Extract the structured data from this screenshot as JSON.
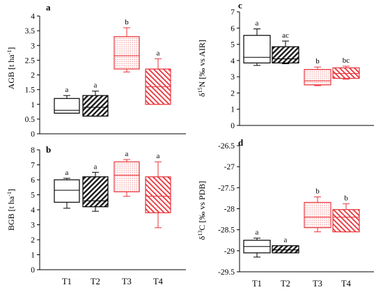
{
  "colors": {
    "axis": "#000000",
    "red": "#e8333a",
    "black": "#1a1a1a",
    "red_dots": "#f3a2a2"
  },
  "categories": [
    "T1",
    "T2",
    "T3",
    "T4"
  ],
  "chart_data": [
    {
      "type": "box",
      "panel_label": "a",
      "ylabel": "AGB [t ha-1]",
      "ylim": [
        0,
        4
      ],
      "yticks": [
        0,
        0.5,
        1,
        1.5,
        2,
        2.5,
        3,
        3.5,
        4
      ],
      "ytick_labels": [
        "0",
        "0.5",
        "1",
        "1.5",
        "2",
        "2.5",
        "3",
        "3.5",
        "4"
      ],
      "boxes": [
        {
          "category": "T1",
          "min": 0.7,
          "q1": 0.7,
          "median": 0.8,
          "q3": 1.2,
          "max": 1.3,
          "letter": "a",
          "fill": "white"
        },
        {
          "category": "T2",
          "min": 0.6,
          "q1": 0.6,
          "median": 0.9,
          "q3": 1.3,
          "max": 1.45,
          "letter": "a",
          "fill": "black-hatch"
        },
        {
          "category": "T3",
          "min": 2.1,
          "q1": 2.2,
          "median": 2.65,
          "q3": 3.3,
          "max": 3.6,
          "letter": "b",
          "fill": "red-dots"
        },
        {
          "category": "T4",
          "min": 1.0,
          "q1": 1.0,
          "median": 1.6,
          "q3": 2.2,
          "max": 2.55,
          "letter": "a",
          "fill": "red-hatch"
        }
      ]
    },
    {
      "type": "box",
      "panel_label": "b",
      "ylabel": "BGB [t ha-1]",
      "ylim": [
        0,
        8
      ],
      "yticks": [
        0,
        1,
        2,
        3,
        4,
        5,
        6,
        7,
        8
      ],
      "ytick_labels": [
        "0",
        "1",
        "2",
        "3",
        "4",
        "5",
        "6",
        "7",
        "8"
      ],
      "boxes": [
        {
          "category": "T1",
          "min": 4.1,
          "q1": 4.5,
          "median": 5.3,
          "q3": 6.0,
          "max": 6.1,
          "letter": "a",
          "fill": "white"
        },
        {
          "category": "T2",
          "min": 3.9,
          "q1": 4.2,
          "median": 4.6,
          "q3": 6.2,
          "max": 6.5,
          "letter": "a",
          "fill": "black-hatch"
        },
        {
          "category": "T3",
          "min": 4.9,
          "q1": 5.2,
          "median": 6.3,
          "q3": 7.2,
          "max": 7.35,
          "letter": "a",
          "fill": "red-dots"
        },
        {
          "category": "T4",
          "min": 2.8,
          "q1": 3.8,
          "median": 4.9,
          "q3": 6.2,
          "max": 7.2,
          "letter": "a",
          "fill": "red-hatch"
        }
      ]
    },
    {
      "type": "box",
      "panel_label": "c",
      "ylabel": "δ15N [‰ vs AIR]",
      "ylim": [
        0,
        7
      ],
      "yticks": [
        0,
        1,
        2,
        3,
        4,
        5,
        6,
        7
      ],
      "ytick_labels": [
        "0",
        "1",
        "2",
        "3",
        "4",
        "5",
        "6",
        "7"
      ],
      "boxes": [
        {
          "category": "T1",
          "min": 3.7,
          "q1": 3.85,
          "median": 4.2,
          "q3": 5.55,
          "max": 5.95,
          "letter": "a",
          "fill": "white"
        },
        {
          "category": "T2",
          "min": 3.8,
          "q1": 3.85,
          "median": 4.1,
          "q3": 4.85,
          "max": 5.2,
          "letter": "ac",
          "fill": "black-hatch"
        },
        {
          "category": "T3",
          "min": 2.45,
          "q1": 2.5,
          "median": 2.75,
          "q3": 3.45,
          "max": 3.6,
          "letter": "b",
          "fill": "red-dots"
        },
        {
          "category": "T4",
          "min": 2.85,
          "q1": 2.9,
          "median": 3.2,
          "q3": 3.55,
          "max": 3.65,
          "letter": "bc",
          "fill": "red-hatch"
        }
      ]
    },
    {
      "type": "box",
      "panel_label": "d",
      "ylabel": "δ13C [‰ vs PDB]",
      "ylim": [
        -29.5,
        -26.5
      ],
      "yticks": [
        -29.5,
        -29,
        -28.5,
        -28,
        -27.5,
        -27,
        -26.5
      ],
      "ytick_labels": [
        "-29.5",
        "-29",
        "-28.5",
        "-28",
        "-27.5",
        "-27",
        "-26.5"
      ],
      "boxes": [
        {
          "category": "T1",
          "min": -29.15,
          "q1": -29.05,
          "median": -28.9,
          "q3": -28.75,
          "max": -28.7,
          "letter": "a",
          "fill": "white"
        },
        {
          "category": "T2",
          "min": -29.05,
          "q1": -29.05,
          "median": -28.98,
          "q3": -28.88,
          "max": -28.88,
          "letter": "a",
          "fill": "black-hatch"
        },
        {
          "category": "T3",
          "min": -28.55,
          "q1": -28.45,
          "median": -28.2,
          "q3": -27.85,
          "max": -27.72,
          "letter": "b",
          "fill": "red-dots"
        },
        {
          "category": "T4",
          "min": -28.55,
          "q1": -28.55,
          "median": -28.2,
          "q3": -28.02,
          "max": -27.88,
          "letter": "b",
          "fill": "red-hatch"
        }
      ]
    }
  ]
}
